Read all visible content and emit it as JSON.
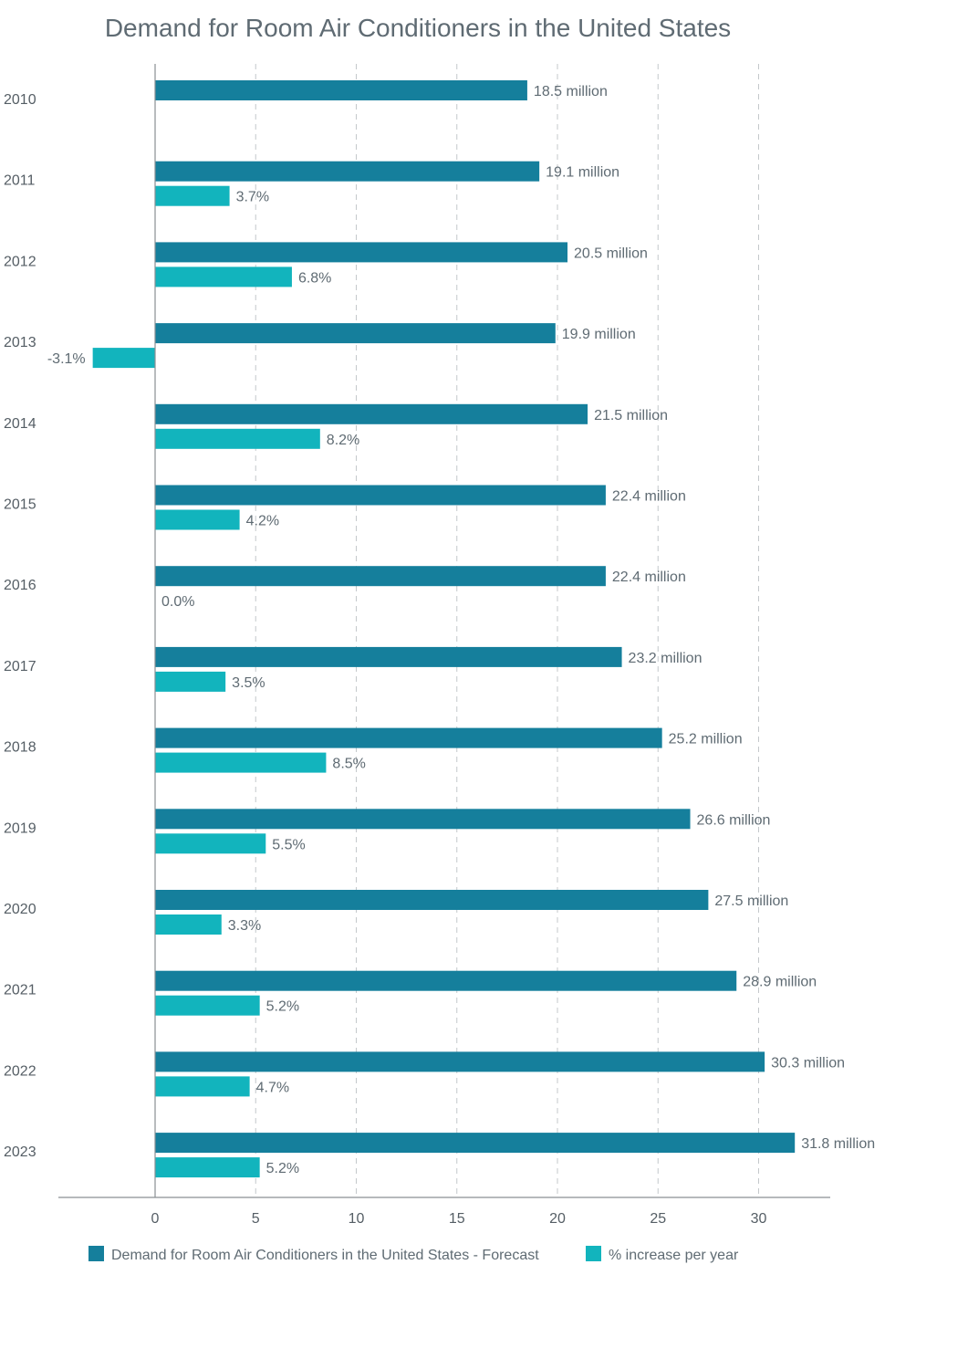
{
  "chart_data": {
    "type": "bar",
    "orientation": "horizontal",
    "title": "Demand for Room Air Conditioners in the United States",
    "categories": [
      "2010",
      "2011",
      "2012",
      "2013",
      "2014",
      "2015",
      "2016",
      "2017",
      "2018",
      "2019",
      "2020",
      "2021",
      "2022",
      "2023"
    ],
    "series": [
      {
        "name": "Demand for Room Air Conditioners in the United States - Forecast",
        "color": "#157f9c",
        "values": [
          18.5,
          19.1,
          20.5,
          19.9,
          21.5,
          22.4,
          22.4,
          23.2,
          25.2,
          26.6,
          27.5,
          28.9,
          30.3,
          31.8
        ],
        "labels": [
          "18.5 million",
          "19.1 million",
          "20.5 million",
          "19.9 million",
          "21.5 million",
          "22.4 million",
          "22.4 million",
          "23.2 million",
          "25.2 million",
          "26.6 million",
          "27.5 million",
          "28.9 million",
          "30.3 million",
          "31.8 million"
        ]
      },
      {
        "name": "% increase per year",
        "color": "#12b4bd",
        "values": [
          null,
          3.7,
          6.8,
          -3.1,
          8.2,
          4.2,
          0.0,
          3.5,
          8.5,
          5.5,
          3.3,
          5.2,
          4.7,
          5.2
        ],
        "labels": [
          "",
          "3.7%",
          "6.8%",
          "-3.1%",
          "8.2%",
          "4.2%",
          "0.0%",
          "3.5%",
          "8.5%",
          "5.5%",
          "3.3%",
          "5.2%",
          "4.7%",
          "5.2%"
        ]
      }
    ],
    "xticks": [
      0,
      5,
      10,
      15,
      20,
      25,
      30
    ],
    "xlim": [
      -4.8,
      33.5
    ],
    "grid": true,
    "legend_position": "bottom"
  }
}
